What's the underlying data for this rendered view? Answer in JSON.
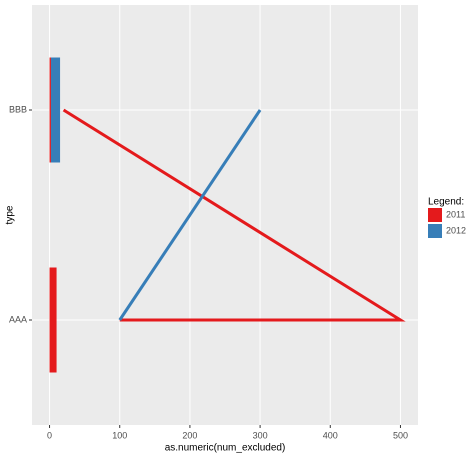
{
  "chart_data": {
    "type": "bar",
    "x_label": "as.numeric(num_excluded)",
    "y_label": "type",
    "categories": [
      "AAA",
      "BBB"
    ],
    "xlim": [
      -25,
      525
    ],
    "xticks": [
      0,
      100,
      200,
      300,
      400,
      500
    ],
    "grid": true,
    "legend_title": "Legend:",
    "legend": "right",
    "series": [
      {
        "name": "2011",
        "color": "#e41a1c",
        "values": [
          10,
          2
        ],
        "line_categories": [
          "BBB",
          "AAA",
          "AAA"
        ],
        "line_values": [
          20,
          500,
          100
        ]
      },
      {
        "name": "2012",
        "color": "#377eb8",
        "values": [
          null,
          13
        ],
        "line_categories": [
          "AAA",
          "BBB"
        ],
        "line_values": [
          100,
          300
        ]
      }
    ]
  }
}
